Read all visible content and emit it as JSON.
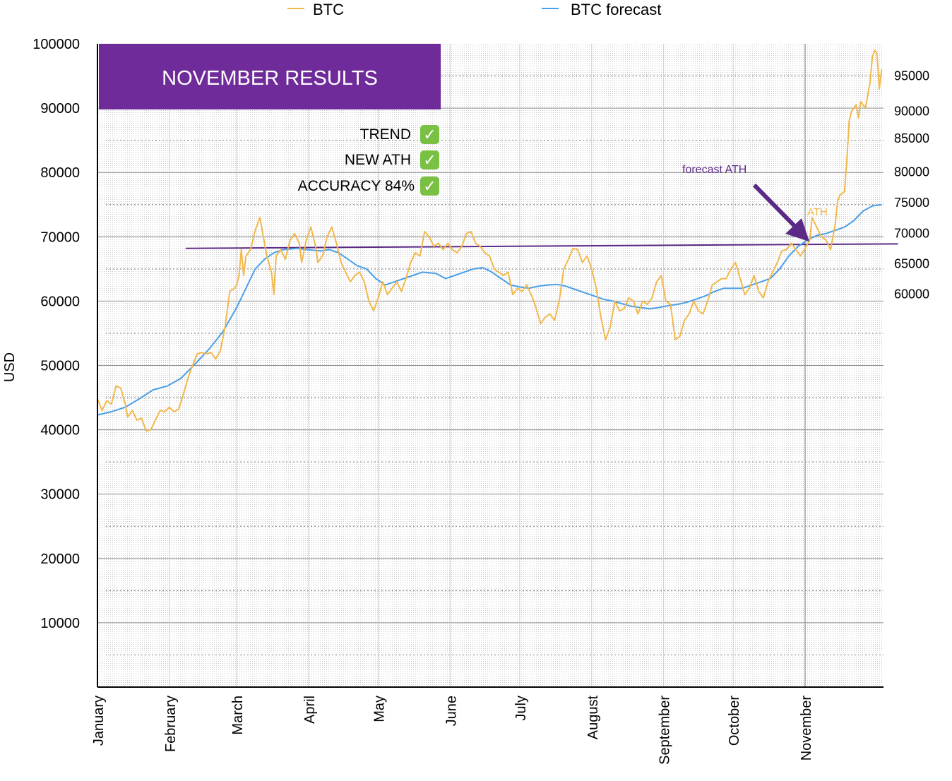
{
  "chart_data": {
    "type": "line",
    "ylabel": "USD",
    "ylim": [
      0,
      100000
    ],
    "y_ticks": [
      10000,
      20000,
      30000,
      40000,
      50000,
      60000,
      70000,
      80000,
      90000,
      100000
    ],
    "y_tick_labels": [
      "10000",
      "20000",
      "30000",
      "40000",
      "50000",
      "60000",
      "70000",
      "80000",
      "90000",
      "100000"
    ],
    "right_labels": [
      {
        "label": "95000",
        "value": 95000
      },
      {
        "label": "90000",
        "value": 89500
      },
      {
        "label": "85000",
        "value": 85300
      },
      {
        "label": "80000",
        "value": 80100
      },
      {
        "label": "75000",
        "value": 75300
      },
      {
        "label": "70000",
        "value": 70500
      },
      {
        "label": "65000",
        "value": 65800
      },
      {
        "label": "60000",
        "value": 61100
      }
    ],
    "x_ticks": [
      {
        "label": "January",
        "day": 0
      },
      {
        "label": "February",
        "day": 31
      },
      {
        "label": "March",
        "day": 60
      },
      {
        "label": "April",
        "day": 91
      },
      {
        "label": "May",
        "day": 121
      },
      {
        "label": "June",
        "day": 152
      },
      {
        "label": "July",
        "day": 182
      },
      {
        "label": "August",
        "day": 213
      },
      {
        "label": "September",
        "day": 244
      },
      {
        "label": "October",
        "day": 274
      },
      {
        "label": "November",
        "day": 305
      }
    ],
    "xlim": [
      0,
      338
    ],
    "legend_position": "top",
    "series": [
      {
        "name": "BTC",
        "color": "#f2b84b",
        "points": [
          [
            0,
            44800
          ],
          [
            2,
            43000
          ],
          [
            4,
            44500
          ],
          [
            6,
            44000
          ],
          [
            8,
            46800
          ],
          [
            10,
            46500
          ],
          [
            12,
            44000
          ],
          [
            13,
            42000
          ],
          [
            15,
            43000
          ],
          [
            17,
            41500
          ],
          [
            19,
            41800
          ],
          [
            21,
            39800
          ],
          [
            23,
            40000
          ],
          [
            25,
            41500
          ],
          [
            27,
            43000
          ],
          [
            29,
            42800
          ],
          [
            31,
            43500
          ],
          [
            33,
            42800
          ],
          [
            35,
            43200
          ],
          [
            37,
            45500
          ],
          [
            39,
            48000
          ],
          [
            41,
            50000
          ],
          [
            43,
            51800
          ],
          [
            45,
            52000
          ],
          [
            47,
            51800
          ],
          [
            49,
            52000
          ],
          [
            51,
            51000
          ],
          [
            53,
            52300
          ],
          [
            55,
            56000
          ],
          [
            57,
            61500
          ],
          [
            59,
            62000
          ],
          [
            60,
            62500
          ],
          [
            61,
            64000
          ],
          [
            62,
            68000
          ],
          [
            63,
            64000
          ],
          [
            64,
            67000
          ],
          [
            66,
            68000
          ],
          [
            68,
            71000
          ],
          [
            70,
            73000
          ],
          [
            71,
            71000
          ],
          [
            73,
            67000
          ],
          [
            75,
            64500
          ],
          [
            76,
            61000
          ],
          [
            77,
            67000
          ],
          [
            79,
            68000
          ],
          [
            81,
            66500
          ],
          [
            83,
            69500
          ],
          [
            85,
            70500
          ],
          [
            87,
            69000
          ],
          [
            88,
            66000
          ],
          [
            90,
            69500
          ],
          [
            92,
            71500
          ],
          [
            94,
            68500
          ],
          [
            95,
            66000
          ],
          [
            97,
            67000
          ],
          [
            99,
            70000
          ],
          [
            101,
            71500
          ],
          [
            103,
            69000
          ],
          [
            105,
            66000
          ],
          [
            107,
            64500
          ],
          [
            109,
            63000
          ],
          [
            111,
            64000
          ],
          [
            113,
            64500
          ],
          [
            115,
            63000
          ],
          [
            117,
            60000
          ],
          [
            119,
            58500
          ],
          [
            121,
            60500
          ],
          [
            123,
            63000
          ],
          [
            125,
            61000
          ],
          [
            127,
            62000
          ],
          [
            129,
            63000
          ],
          [
            131,
            61500
          ],
          [
            133,
            63500
          ],
          [
            135,
            66000
          ],
          [
            137,
            67500
          ],
          [
            139,
            67000
          ],
          [
            141,
            70800
          ],
          [
            143,
            70000
          ],
          [
            145,
            68500
          ],
          [
            147,
            69000
          ],
          [
            149,
            68000
          ],
          [
            151,
            69000
          ],
          [
            153,
            68000
          ],
          [
            155,
            67500
          ],
          [
            157,
            68500
          ],
          [
            159,
            70500
          ],
          [
            161,
            70800
          ],
          [
            163,
            69000
          ],
          [
            165,
            68500
          ],
          [
            167,
            67500
          ],
          [
            169,
            67000
          ],
          [
            171,
            65000
          ],
          [
            173,
            64500
          ],
          [
            175,
            64000
          ],
          [
            177,
            64500
          ],
          [
            179,
            61000
          ],
          [
            181,
            62000
          ],
          [
            183,
            61500
          ],
          [
            185,
            62500
          ],
          [
            187,
            61000
          ],
          [
            189,
            59000
          ],
          [
            191,
            56500
          ],
          [
            193,
            57500
          ],
          [
            195,
            58000
          ],
          [
            197,
            57000
          ],
          [
            199,
            60000
          ],
          [
            201,
            65000
          ],
          [
            203,
            66500
          ],
          [
            205,
            68200
          ],
          [
            207,
            68000
          ],
          [
            209,
            66000
          ],
          [
            211,
            67000
          ],
          [
            213,
            65000
          ],
          [
            215,
            62000
          ],
          [
            217,
            57500
          ],
          [
            219,
            54000
          ],
          [
            221,
            56000
          ],
          [
            223,
            60000
          ],
          [
            225,
            58500
          ],
          [
            227,
            58800
          ],
          [
            229,
            60500
          ],
          [
            231,
            60000
          ],
          [
            233,
            58000
          ],
          [
            235,
            60000
          ],
          [
            237,
            59500
          ],
          [
            239,
            60500
          ],
          [
            241,
            63000
          ],
          [
            243,
            64000
          ],
          [
            245,
            60000
          ],
          [
            247,
            59500
          ],
          [
            249,
            54000
          ],
          [
            251,
            54500
          ],
          [
            253,
            57000
          ],
          [
            255,
            58000
          ],
          [
            257,
            60000
          ],
          [
            259,
            58500
          ],
          [
            261,
            58000
          ],
          [
            263,
            60000
          ],
          [
            265,
            62500
          ],
          [
            267,
            63000
          ],
          [
            269,
            63500
          ],
          [
            271,
            63500
          ],
          [
            273,
            65000
          ],
          [
            275,
            66000
          ],
          [
            277,
            63500
          ],
          [
            279,
            61000
          ],
          [
            281,
            62000
          ],
          [
            283,
            64000
          ],
          [
            285,
            61500
          ],
          [
            287,
            60500
          ],
          [
            289,
            63000
          ],
          [
            291,
            64500
          ],
          [
            293,
            66000
          ],
          [
            295,
            67800
          ],
          [
            297,
            68000
          ],
          [
            299,
            69000
          ],
          [
            301,
            68000
          ],
          [
            303,
            67000
          ],
          [
            305,
            68200
          ],
          [
            307,
            69500
          ],
          [
            308,
            73000
          ],
          [
            310,
            71500
          ],
          [
            312,
            70000
          ],
          [
            314,
            69500
          ],
          [
            316,
            68000
          ],
          [
            318,
            72000
          ],
          [
            319,
            75500
          ],
          [
            320,
            76500
          ],
          [
            322,
            77000
          ],
          [
            323,
            82000
          ],
          [
            324,
            88000
          ],
          [
            325,
            89500
          ],
          [
            327,
            90500
          ],
          [
            328,
            88500
          ],
          [
            329,
            91000
          ],
          [
            331,
            90000
          ],
          [
            333,
            94000
          ],
          [
            334,
            98000
          ],
          [
            335,
            99000
          ],
          [
            336,
            98500
          ],
          [
            337,
            93000
          ],
          [
            338,
            96000
          ]
        ]
      },
      {
        "name": "BTC forecast",
        "color": "#4a9fe8",
        "points": [
          [
            0,
            42300
          ],
          [
            6,
            42800
          ],
          [
            12,
            43500
          ],
          [
            18,
            44800
          ],
          [
            24,
            46200
          ],
          [
            30,
            46800
          ],
          [
            36,
            48000
          ],
          [
            42,
            50200
          ],
          [
            48,
            52500
          ],
          [
            54,
            55200
          ],
          [
            60,
            59000
          ],
          [
            64,
            62000
          ],
          [
            68,
            65000
          ],
          [
            72,
            66500
          ],
          [
            76,
            67500
          ],
          [
            80,
            68000
          ],
          [
            86,
            68200
          ],
          [
            90,
            68000
          ],
          [
            96,
            67800
          ],
          [
            100,
            68000
          ],
          [
            104,
            67500
          ],
          [
            108,
            66500
          ],
          [
            112,
            65500
          ],
          [
            116,
            65000
          ],
          [
            120,
            63500
          ],
          [
            124,
            62500
          ],
          [
            128,
            63000
          ],
          [
            132,
            63500
          ],
          [
            136,
            64000
          ],
          [
            140,
            64500
          ],
          [
            146,
            64300
          ],
          [
            150,
            63500
          ],
          [
            154,
            64000
          ],
          [
            158,
            64500
          ],
          [
            162,
            65000
          ],
          [
            166,
            65200
          ],
          [
            170,
            64500
          ],
          [
            174,
            63500
          ],
          [
            178,
            62500
          ],
          [
            182,
            62200
          ],
          [
            186,
            62000
          ],
          [
            190,
            62300
          ],
          [
            194,
            62500
          ],
          [
            198,
            62600
          ],
          [
            202,
            62300
          ],
          [
            206,
            61800
          ],
          [
            210,
            61300
          ],
          [
            214,
            60800
          ],
          [
            218,
            60300
          ],
          [
            222,
            60000
          ],
          [
            226,
            59600
          ],
          [
            230,
            59200
          ],
          [
            234,
            59000
          ],
          [
            238,
            58800
          ],
          [
            242,
            59000
          ],
          [
            246,
            59300
          ],
          [
            250,
            59500
          ],
          [
            254,
            59800
          ],
          [
            258,
            60300
          ],
          [
            262,
            60800
          ],
          [
            266,
            61500
          ],
          [
            270,
            62000
          ],
          [
            274,
            62000
          ],
          [
            278,
            62000
          ],
          [
            282,
            62500
          ],
          [
            286,
            63000
          ],
          [
            290,
            63500
          ],
          [
            294,
            65000
          ],
          [
            298,
            67000
          ],
          [
            302,
            68500
          ],
          [
            306,
            69500
          ],
          [
            310,
            70200
          ],
          [
            314,
            70500
          ],
          [
            318,
            71000
          ],
          [
            322,
            71500
          ],
          [
            326,
            72500
          ],
          [
            330,
            74000
          ],
          [
            334,
            74800
          ],
          [
            338,
            75000
          ]
        ]
      }
    ],
    "reference_line": {
      "color": "#5b2a86",
      "x_start": 38,
      "x_end": 345,
      "y_start": 68200,
      "y_end": 68900
    },
    "vertical_marker": {
      "day": 305,
      "color": "#a0a0a0"
    },
    "annotations": {
      "banner": "NOVEMBER RESULTS",
      "banner_color": "#6f2b9a",
      "checklist": [
        "TREND",
        "NEW ATH",
        "ACCURACY 84%"
      ],
      "check_symbol": "✓",
      "check_color": "#7ac143",
      "forecast_ath": "forecast ATH",
      "forecast_ath_color": "#5b2a86",
      "ath": "ATH",
      "ath_color": "#f2b84b"
    }
  }
}
